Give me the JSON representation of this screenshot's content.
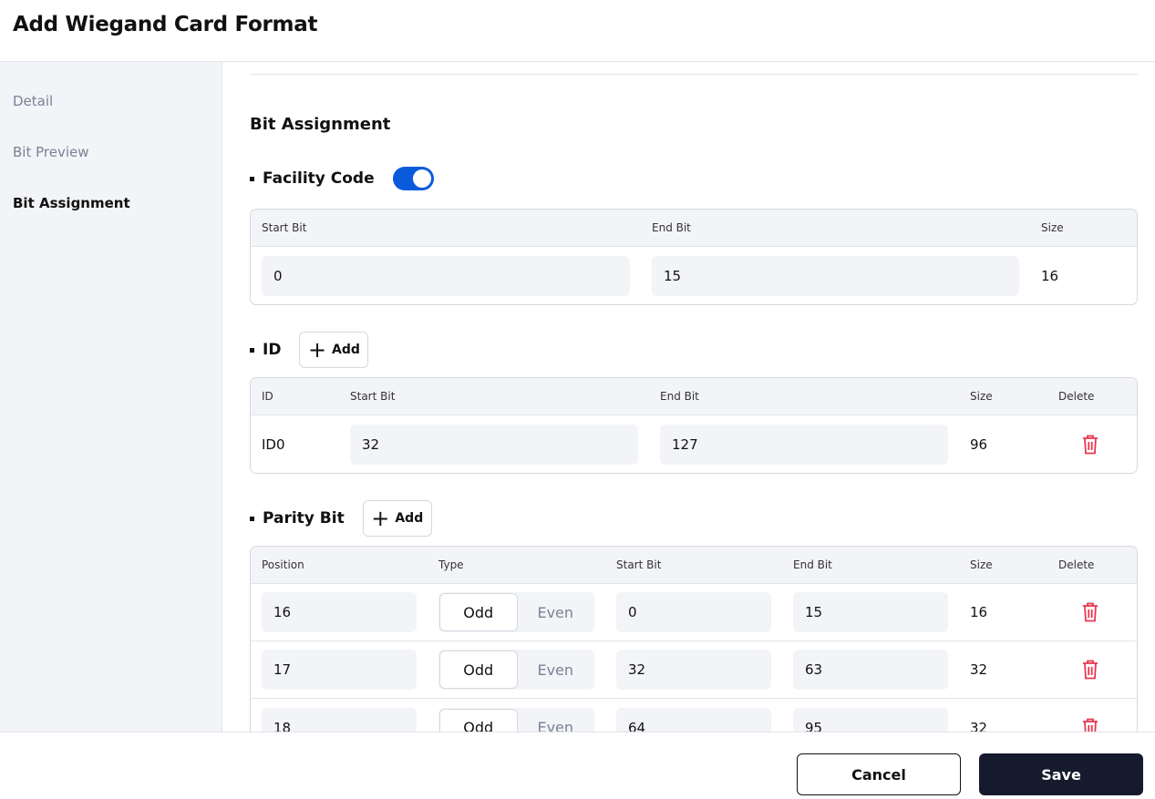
{
  "header": {
    "title": "Add Wiegand Card Format"
  },
  "sidebar": {
    "items": [
      {
        "label": "Detail"
      },
      {
        "label": "Bit Preview"
      },
      {
        "label": "Bit Assignment",
        "active": true
      }
    ]
  },
  "section_title": "Bit Assignment",
  "facility": {
    "label": "Facility Code",
    "enabled": true,
    "headers": [
      "Start Bit",
      "End Bit",
      "Size"
    ],
    "row": {
      "start": "0",
      "end": "15",
      "size": "16"
    }
  },
  "id": {
    "label": "ID",
    "add_label": "Add",
    "headers": [
      "ID",
      "Start Bit",
      "End Bit",
      "Size",
      "Delete"
    ],
    "rows": [
      {
        "id": "ID0",
        "start": "32",
        "end": "127",
        "size": "96"
      }
    ]
  },
  "parity": {
    "label": "Parity Bit",
    "add_label": "Add",
    "headers": [
      "Position",
      "Type",
      "Start Bit",
      "End Bit",
      "Size",
      "Delete"
    ],
    "type_options": [
      "Odd",
      "Even"
    ],
    "rows": [
      {
        "position": "16",
        "type": "Odd",
        "start": "0",
        "end": "15",
        "size": "16"
      },
      {
        "position": "17",
        "type": "Odd",
        "start": "32",
        "end": "63",
        "size": "32"
      },
      {
        "position": "18",
        "type": "Odd",
        "start": "64",
        "end": "95",
        "size": "32"
      }
    ]
  },
  "footer": {
    "cancel": "Cancel",
    "save": "Save"
  },
  "colors": {
    "accent": "#0a5bdc",
    "delete": "#e8364f",
    "primary_button": "#151a2d"
  }
}
